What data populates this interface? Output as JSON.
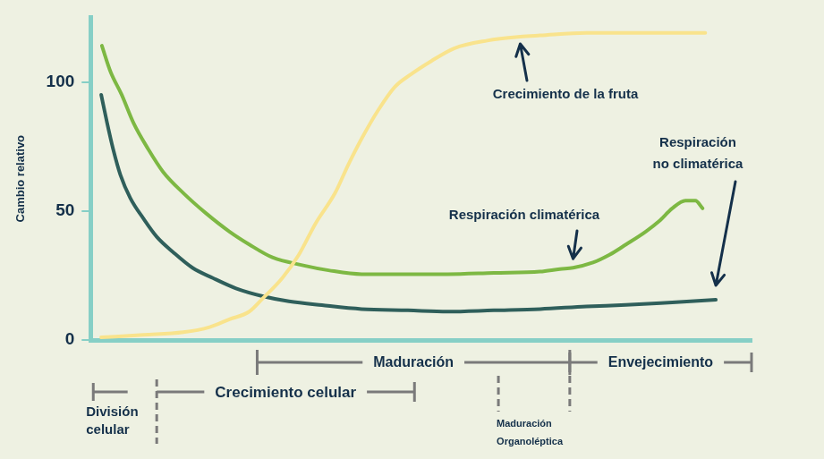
{
  "chart_data": {
    "type": "line",
    "y_label": "Cambio relativo",
    "xlim": [
      0,
      100
    ],
    "ylim": [
      0,
      125
    ],
    "yticks": [
      0,
      50,
      100
    ],
    "grid": false,
    "tick_labels": "y",
    "series": [
      {
        "name": "Crecimiento de la fruta",
        "color": "#f9e38c",
        "x": [
          1.6,
          8,
          14,
          18,
          21,
          24,
          26,
          29,
          31.5,
          34,
          37,
          39,
          41,
          43.5,
          46,
          48.5,
          51.5,
          55,
          60,
          65,
          68,
          75,
          85,
          93
        ],
        "values": [
          1,
          2,
          3,
          5,
          8,
          11,
          16,
          24,
          33,
          45,
          57,
          68,
          78,
          89,
          98,
          103,
          108,
          113,
          116,
          117.5,
          118,
          119,
          119,
          119
        ]
      },
      {
        "name": "Respiración climatérica",
        "color": "#7db843",
        "x": [
          1.7,
          3,
          4.7,
          6.5,
          8.7,
          11,
          14,
          17.5,
          21,
          24,
          27.5,
          32,
          36,
          41,
          48,
          54,
          61,
          68,
          71,
          73,
          76,
          78.5,
          81,
          84,
          86,
          88,
          90,
          91.5,
          92.6
        ],
        "values": [
          114,
          104,
          95,
          84,
          74,
          65,
          57,
          49,
          42,
          37,
          32,
          29,
          27,
          25.5,
          25.5,
          25.5,
          26,
          26.5,
          27.5,
          28,
          30,
          33,
          37,
          42,
          46,
          51,
          54,
          54,
          51
        ]
      },
      {
        "name": "Respiración no climatérica",
        "color": "#2f5f5b",
        "x": [
          1.6,
          2.5,
          3.4,
          4.5,
          6,
          8,
          10,
          12.5,
          15.4,
          18.5,
          22,
          26,
          30,
          35,
          41,
          48,
          54,
          61,
          68,
          75,
          81,
          88,
          94.6
        ],
        "values": [
          95,
          84,
          74,
          64,
          55,
          47,
          40,
          34,
          28,
          24,
          20,
          17,
          15,
          13.5,
          12,
          11.5,
          11,
          11.5,
          12,
          13,
          13.6,
          14.6,
          15.6
        ]
      }
    ],
    "phases": [
      {
        "label": "Maduración",
        "start": 25.2,
        "end": 72.5
      },
      {
        "label": "Envejecimiento",
        "start": 72.5,
        "end": 100
      },
      {
        "label": "Crecimiento celular",
        "start": 10,
        "end": 49
      },
      {
        "label": "División celular",
        "start": 0.4,
        "end": 5.6
      },
      {
        "label": "Maduración Organoléptica",
        "start": 61.7,
        "end": 72.5
      }
    ]
  }
}
